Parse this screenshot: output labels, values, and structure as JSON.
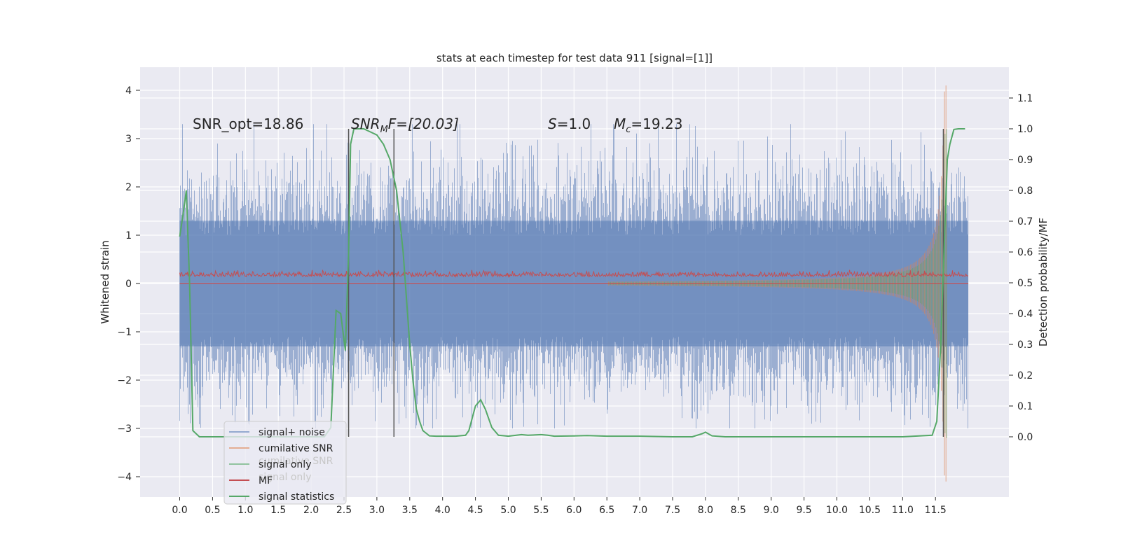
{
  "chart_data": {
    "type": "line",
    "title": "stats at each timestep for test data 911 [signal=[1]]",
    "xlabel": "",
    "ylabel": "Whitened strain",
    "y2label": "Detection probability/MF",
    "xlim": [
      -0.6,
      12.6
    ],
    "ylim": [
      -4.45,
      4.45
    ],
    "y2lim": [
      -0.197,
      1.2
    ],
    "x_ticks": [
      "0.0",
      "0.5",
      "1.0",
      "1.5",
      "2.0",
      "2.5",
      "3.0",
      "3.5",
      "4.0",
      "4.5",
      "5.0",
      "5.5",
      "6.0",
      "6.5",
      "7.0",
      "7.5",
      "8.0",
      "8.5",
      "9.0",
      "9.5",
      "10.0",
      "10.5",
      "11.0",
      "11.5"
    ],
    "y_ticks": [
      4,
      3,
      2,
      1,
      0,
      -1,
      -2,
      -3,
      -4
    ],
    "y_tick_labels": [
      "4",
      "3",
      "2",
      "1",
      "0",
      "−1",
      "−2",
      "−3",
      "−4"
    ],
    "y2_ticks": [
      "1.1",
      "1.0",
      "0.9",
      "0.8",
      "0.7",
      "0.6",
      "0.5",
      "0.4",
      "0.3",
      "0.2",
      "0.1",
      "0.0"
    ],
    "grid": true,
    "legend_position": "lower-left",
    "legend": [
      "signal+ noise",
      "cumilative SNR",
      "signal only",
      "MF",
      "signal statistics"
    ],
    "legend_ghost": [
      "cumilative SNR",
      "signal only"
    ],
    "colors": {
      "background": "#eaeaf2",
      "noise": "#4c72b0",
      "cumulative": "#dd8452",
      "signal": "#55a868",
      "mf": "#c44e52",
      "statistics": "#55a868",
      "vline": "#555555"
    },
    "annotations": {
      "snr_opt": "SNR_opt=18.86",
      "snr_mf_sym": "SNR",
      "snr_mf_sub": "M",
      "snr_mf_rest": "F=[20.03]",
      "s_sym": "S",
      "s_val": "=1.0",
      "mc_sym": "M",
      "mc_sub": "c",
      "mc_val": "=19.23"
    },
    "vertical_markers_x": [
      2.57,
      3.26,
      11.62
    ],
    "series": [
      {
        "name": "signal+ noise",
        "x_range": [
          0.0,
          12.0
        ],
        "core_amplitude": 1.3,
        "peak_amplitude": 3.3,
        "description_axis": "left"
      },
      {
        "name": "signal only",
        "chirp_start_x": 7.0,
        "chirp_peak_x": 11.65,
        "peak_amplitude": 4.1,
        "end_x": 11.66,
        "description_axis": "left"
      },
      {
        "name": "MF",
        "level": 0.52,
        "description_axis": "right"
      },
      {
        "name": "signal statistics",
        "x": [
          0.0,
          0.05,
          0.1,
          0.15,
          0.2,
          0.3,
          0.5,
          1.0,
          2.0,
          2.2,
          2.3,
          2.38,
          2.45,
          2.52,
          2.57,
          2.6,
          2.65,
          2.7,
          2.8,
          2.9,
          3.0,
          3.1,
          3.2,
          3.3,
          3.4,
          3.45,
          3.5,
          3.55,
          3.6,
          3.65,
          3.7,
          3.8,
          3.9,
          4.0,
          4.2,
          4.35,
          4.4,
          4.5,
          4.58,
          4.65,
          4.75,
          4.85,
          5.0,
          5.2,
          5.3,
          5.5,
          5.6,
          5.7,
          6.0,
          6.2,
          6.5,
          7.0,
          7.5,
          7.8,
          7.95,
          8.0,
          8.1,
          8.3,
          9.0,
          10.0,
          11.0,
          11.45,
          11.52,
          11.58,
          11.63,
          11.68,
          11.72,
          11.78,
          11.85,
          11.95
        ],
        "y": [
          0.65,
          0.72,
          0.8,
          0.5,
          0.02,
          0.0,
          0.0,
          0.0,
          0.0,
          0.0,
          0.03,
          0.41,
          0.4,
          0.28,
          0.6,
          0.95,
          1.0,
          1.0,
          1.0,
          0.99,
          0.98,
          0.95,
          0.9,
          0.8,
          0.6,
          0.45,
          0.3,
          0.18,
          0.09,
          0.05,
          0.02,
          0.003,
          0.002,
          0.002,
          0.002,
          0.005,
          0.02,
          0.1,
          0.12,
          0.09,
          0.03,
          0.005,
          0.002,
          0.007,
          0.005,
          0.007,
          0.005,
          0.002,
          0.003,
          0.004,
          0.002,
          0.002,
          0.0,
          0.0,
          0.01,
          0.015,
          0.003,
          0.0,
          0.0,
          0.0,
          0.0,
          0.005,
          0.05,
          0.3,
          0.6,
          0.9,
          0.95,
          0.998,
          1.0,
          1.0
        ],
        "description_axis": "right"
      }
    ]
  }
}
